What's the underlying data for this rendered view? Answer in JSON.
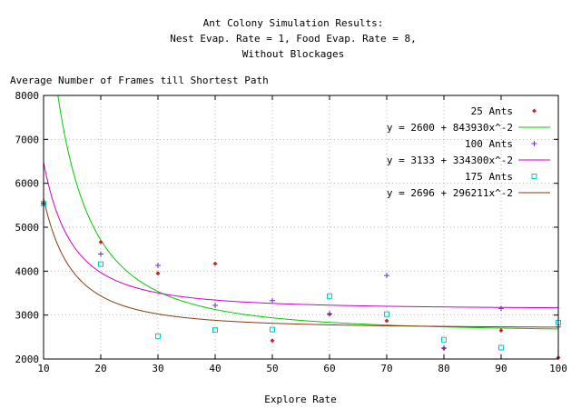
{
  "chart_data": {
    "type": "scatter",
    "title_lines": [
      "Ant Colony Simulation Results:",
      "Nest Evap. Rate = 1, Food Evap. Rate = 8,",
      "Without Blockages"
    ],
    "xlabel": "Explore Rate",
    "ylabel": "Average Number of Frames till Shortest Path",
    "xlim": [
      10,
      100
    ],
    "ylim": [
      2000,
      8000
    ],
    "xticks": [
      10,
      20,
      30,
      40,
      50,
      60,
      70,
      80,
      90,
      100
    ],
    "yticks": [
      2000,
      3000,
      4000,
      5000,
      6000,
      7000,
      8000
    ],
    "grid": true,
    "legend_position": "top-right",
    "series": [
      {
        "name": "25 Ants",
        "marker": "diamond",
        "color": "#cc2222",
        "points": [
          [
            10,
            5540
          ],
          [
            20,
            4660
          ],
          [
            30,
            3950
          ],
          [
            40,
            4170
          ],
          [
            50,
            2420
          ],
          [
            60,
            3020
          ],
          [
            70,
            2870
          ],
          [
            80,
            2240
          ],
          [
            90,
            2650
          ],
          [
            100,
            2030
          ]
        ]
      },
      {
        "name": "100 Ants",
        "marker": "plus",
        "color": "#6a2ad0",
        "points": [
          [
            10,
            5540
          ],
          [
            20,
            4390
          ],
          [
            30,
            4130
          ],
          [
            40,
            3220
          ],
          [
            50,
            3330
          ],
          [
            60,
            3030
          ],
          [
            70,
            3900
          ],
          [
            80,
            2250
          ],
          [
            90,
            3150
          ],
          [
            100,
            2730
          ]
        ]
      },
      {
        "name": "175 Ants",
        "marker": "square",
        "color": "#00cccc",
        "points": [
          [
            10,
            5540
          ],
          [
            20,
            4160
          ],
          [
            30,
            2520
          ],
          [
            40,
            2660
          ],
          [
            50,
            2670
          ],
          [
            60,
            3430
          ],
          [
            70,
            3020
          ],
          [
            80,
            2440
          ],
          [
            90,
            2260
          ],
          [
            100,
            2830
          ]
        ]
      }
    ],
    "fits": [
      {
        "name": "y = 2600 + 843930x^-2",
        "a": 2600,
        "b": 843930,
        "color": "#00cc00"
      },
      {
        "name": "y = 3133 + 334300x^-2",
        "a": 3133,
        "b": 334300,
        "color": "#cc00cc"
      },
      {
        "name": "y = 2696 + 296211x^-2",
        "a": 2696,
        "b": 296211,
        "color": "#8b3a10"
      }
    ]
  }
}
